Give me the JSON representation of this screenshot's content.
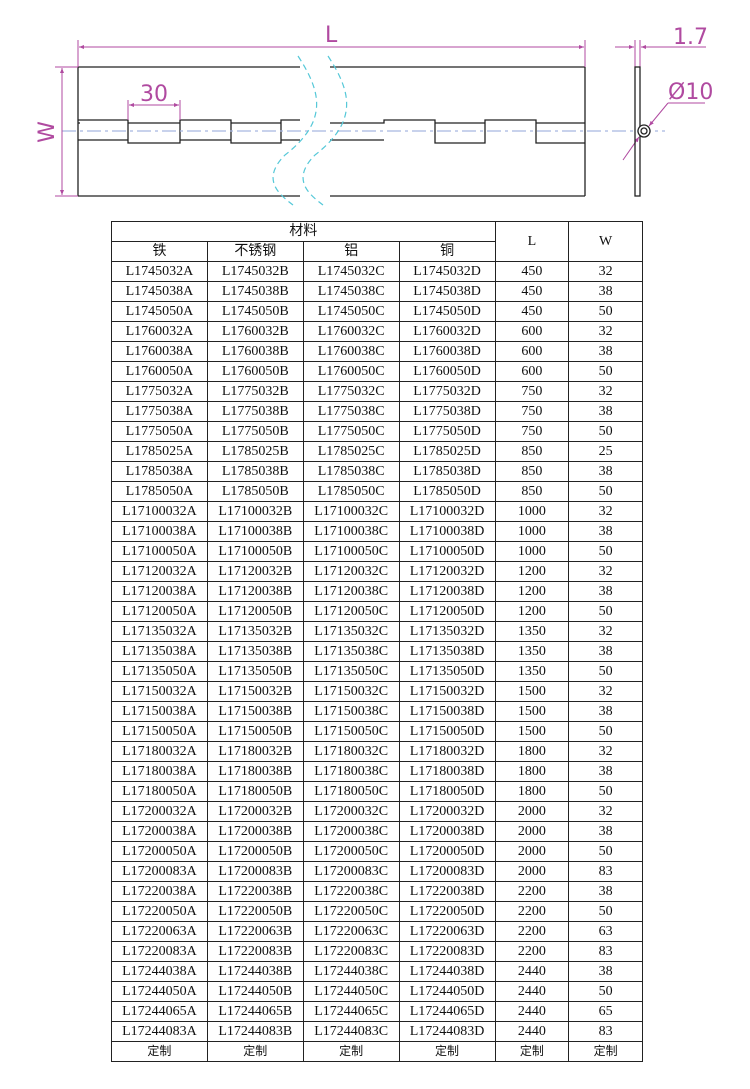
{
  "drawing": {
    "dim_length": "L",
    "dim_width": "W",
    "dim_knuckle": "30",
    "dim_thickness": "1.7",
    "dim_pin": "Ø10",
    "dimension_color": "#b04aa0",
    "centerline_color": "#a8b8e0",
    "break_line_color": "#55c8d8"
  },
  "table": {
    "group_header": "材料",
    "headers": [
      "铁",
      "不锈钢",
      "铝",
      "铜",
      "L",
      "W"
    ],
    "rows": [
      [
        "L1745032A",
        "L1745032B",
        "L1745032C",
        "L1745032D",
        "450",
        "32"
      ],
      [
        "L1745038A",
        "L1745038B",
        "L1745038C",
        "L1745038D",
        "450",
        "38"
      ],
      [
        "L1745050A",
        "L1745050B",
        "L1745050C",
        "L1745050D",
        "450",
        "50"
      ],
      [
        "L1760032A",
        "L1760032B",
        "L1760032C",
        "L1760032D",
        "600",
        "32"
      ],
      [
        "L1760038A",
        "L1760038B",
        "L1760038C",
        "L1760038D",
        "600",
        "38"
      ],
      [
        "L1760050A",
        "L1760050B",
        "L1760050C",
        "L1760050D",
        "600",
        "50"
      ],
      [
        "L1775032A",
        "L1775032B",
        "L1775032C",
        "L1775032D",
        "750",
        "32"
      ],
      [
        "L1775038A",
        "L1775038B",
        "L1775038C",
        "L1775038D",
        "750",
        "38"
      ],
      [
        "L1775050A",
        "L1775050B",
        "L1775050C",
        "L1775050D",
        "750",
        "50"
      ],
      [
        "L1785025A",
        "L1785025B",
        "L1785025C",
        "L1785025D",
        "850",
        "25"
      ],
      [
        "L1785038A",
        "L1785038B",
        "L1785038C",
        "L1785038D",
        "850",
        "38"
      ],
      [
        "L1785050A",
        "L1785050B",
        "L1785050C",
        "L1785050D",
        "850",
        "50"
      ],
      [
        "L17100032A",
        "L17100032B",
        "L17100032C",
        "L17100032D",
        "1000",
        "32"
      ],
      [
        "L17100038A",
        "L17100038B",
        "L17100038C",
        "L17100038D",
        "1000",
        "38"
      ],
      [
        "L17100050A",
        "L17100050B",
        "L17100050C",
        "L17100050D",
        "1000",
        "50"
      ],
      [
        "L17120032A",
        "L17120032B",
        "L17120032C",
        "L17120032D",
        "1200",
        "32"
      ],
      [
        "L17120038A",
        "L17120038B",
        "L17120038C",
        "L17120038D",
        "1200",
        "38"
      ],
      [
        "L17120050A",
        "L17120050B",
        "L17120050C",
        "L17120050D",
        "1200",
        "50"
      ],
      [
        "L17135032A",
        "L17135032B",
        "L17135032C",
        "L17135032D",
        "1350",
        "32"
      ],
      [
        "L17135038A",
        "L17135038B",
        "L17135038C",
        "L17135038D",
        "1350",
        "38"
      ],
      [
        "L17135050A",
        "L17135050B",
        "L17135050C",
        "L17135050D",
        "1350",
        "50"
      ],
      [
        "L17150032A",
        "L17150032B",
        "L17150032C",
        "L17150032D",
        "1500",
        "32"
      ],
      [
        "L17150038A",
        "L17150038B",
        "L17150038C",
        "L17150038D",
        "1500",
        "38"
      ],
      [
        "L17150050A",
        "L17150050B",
        "L17150050C",
        "L17150050D",
        "1500",
        "50"
      ],
      [
        "L17180032A",
        "L17180032B",
        "L17180032C",
        "L17180032D",
        "1800",
        "32"
      ],
      [
        "L17180038A",
        "L17180038B",
        "L17180038C",
        "L17180038D",
        "1800",
        "38"
      ],
      [
        "L17180050A",
        "L17180050B",
        "L17180050C",
        "L17180050D",
        "1800",
        "50"
      ],
      [
        "L17200032A",
        "L17200032B",
        "L17200032C",
        "L17200032D",
        "2000",
        "32"
      ],
      [
        "L17200038A",
        "L17200038B",
        "L17200038C",
        "L17200038D",
        "2000",
        "38"
      ],
      [
        "L17200050A",
        "L17200050B",
        "L17200050C",
        "L17200050D",
        "2000",
        "50"
      ],
      [
        "L17200083A",
        "L17200083B",
        "L17200083C",
        "L17200083D",
        "2000",
        "83"
      ],
      [
        "L17220038A",
        "L17220038B",
        "L17220038C",
        "L17220038D",
        "2200",
        "38"
      ],
      [
        "L17220050A",
        "L17220050B",
        "L17220050C",
        "L17220050D",
        "2200",
        "50"
      ],
      [
        "L17220063A",
        "L17220063B",
        "L17220063C",
        "L17220063D",
        "2200",
        "63"
      ],
      [
        "L17220083A",
        "L17220083B",
        "L17220083C",
        "L17220083D",
        "2200",
        "83"
      ],
      [
        "L17244038A",
        "L17244038B",
        "L17244038C",
        "L17244038D",
        "2440",
        "38"
      ],
      [
        "L17244050A",
        "L17244050B",
        "L17244050C",
        "L17244050D",
        "2440",
        "50"
      ],
      [
        "L17244065A",
        "L17244065B",
        "L17244065C",
        "L17244065D",
        "2440",
        "65"
      ],
      [
        "L17244083A",
        "L17244083B",
        "L17244083C",
        "L17244083D",
        "2440",
        "83"
      ]
    ],
    "custom_row": [
      "定制",
      "定制",
      "定制",
      "定制",
      "定制",
      "定制"
    ]
  }
}
